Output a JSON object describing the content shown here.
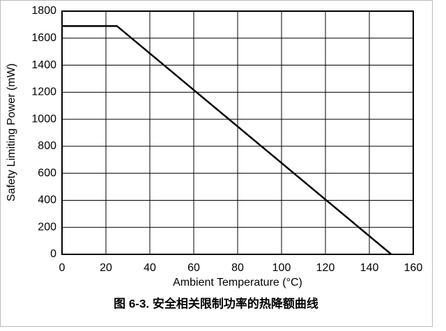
{
  "chart_data": {
    "type": "line",
    "title": "图 6-3. 安全相关限制功率的热降额曲线",
    "x_label": "Ambient Temperature (°C)",
    "y_label": "Safety Limiting Power (mW)",
    "series": [
      {
        "x": [
          0,
          25,
          150
        ],
        "values": [
          1690,
          1690,
          0
        ],
        "color": "#000000"
      }
    ],
    "xlim": [
      0,
      160
    ],
    "xticks": [
      0,
      20,
      40,
      60,
      80,
      100,
      120,
      140,
      160
    ],
    "ylim": [
      0,
      1800
    ],
    "yticks": [
      0,
      200,
      400,
      600,
      800,
      1000,
      1200,
      1400,
      1600,
      1800
    ],
    "grid": true
  }
}
